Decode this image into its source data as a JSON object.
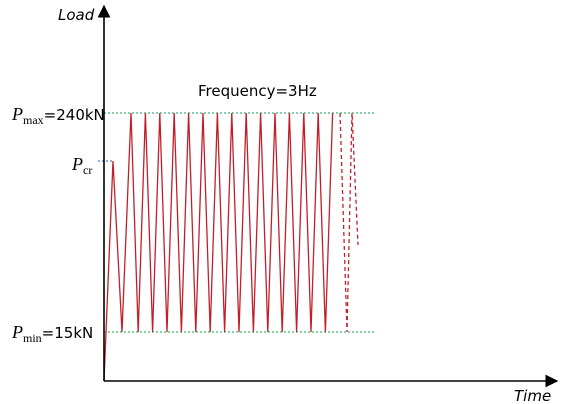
{
  "axes": {
    "y_label": "Load",
    "x_label": "Time"
  },
  "annotation": "Frequency=3Hz",
  "levels": {
    "pmax": {
      "symbol": "P",
      "subscript": "max",
      "text": "=240kN"
    },
    "pcr": {
      "symbol": "P",
      "subscript": "cr"
    },
    "pmin": {
      "symbol": "P",
      "subscript": "min",
      "text": "=15kN"
    }
  }
}
